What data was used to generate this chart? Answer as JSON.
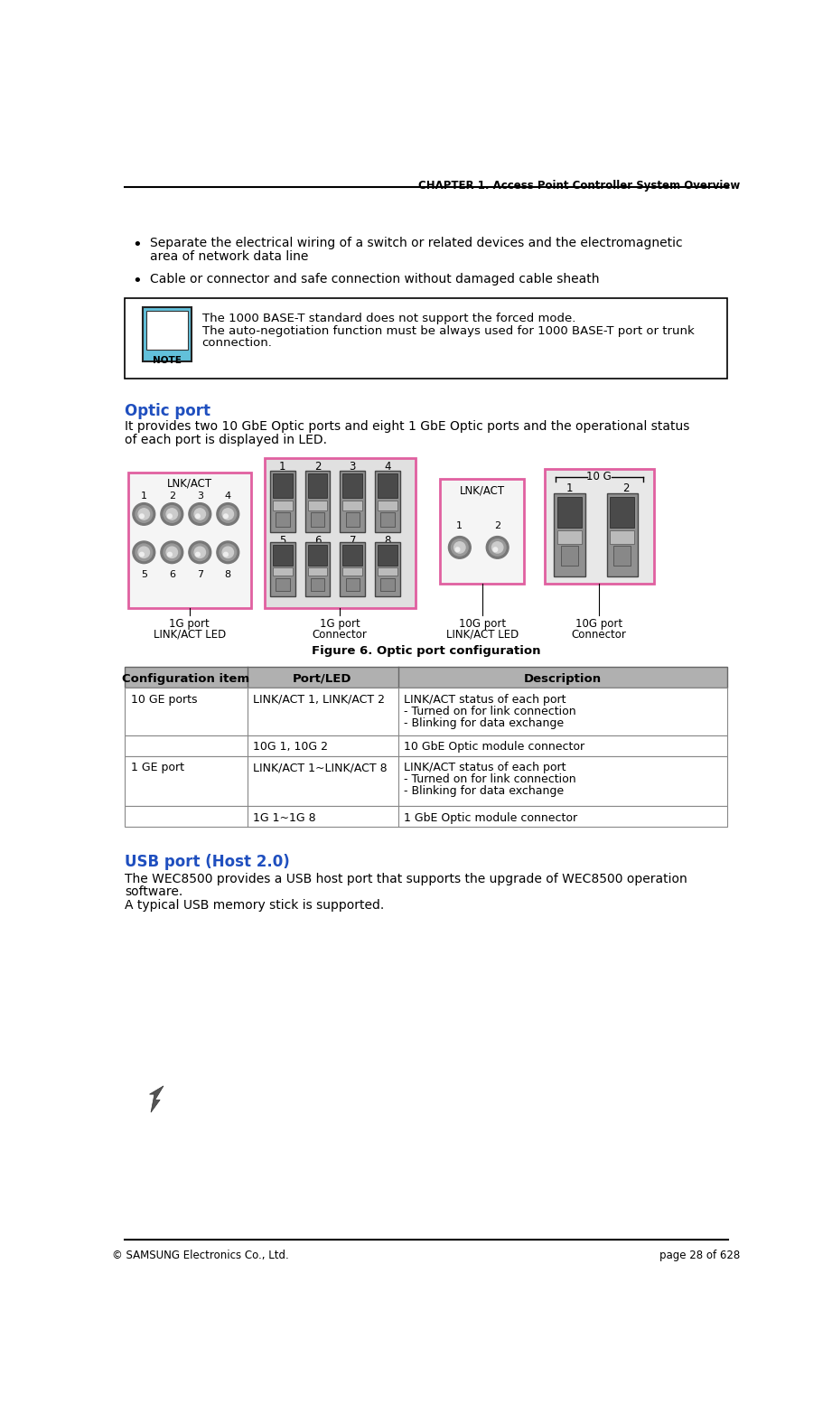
{
  "header_text": "CHAPTER 1. Access Point Controller System Overview",
  "footer_left": "© SAMSUNG Electronics Co., Ltd.",
  "footer_right": "page 28 of 628",
  "bullet1_line1": "Separate the electrical wiring of a switch or related devices and the electromagnetic",
  "bullet1_line2": "area of network data line",
  "bullet2": "Cable or connector and safe connection without damaged cable sheath",
  "note_line1": "The 1000 BASE-T standard does not support the forced mode.",
  "note_line2": "The auto-negotiation function must be always used for 1000 BASE-T port or trunk",
  "note_line3": "connection.",
  "optic_port_title": "Optic port",
  "optic_desc_line1": "It provides two 10 GbE Optic ports and eight 1 GbE Optic ports and the operational status",
  "optic_desc_line2": "of each port is displayed in LED.",
  "figure_caption": "Figure 6. Optic port configuration",
  "label_1g_linkact": "1G port\nLINK/ACT LED",
  "label_1g_connector": "1G port\nConnector",
  "label_10g_linkact": "10G port\nLINK/ACT LED",
  "label_10g_connector": "10G port\nConnector",
  "table_header": [
    "Configuration item",
    "Port/LED",
    "Description"
  ],
  "table_rows": [
    [
      "10 GE ports",
      "LINK/ACT 1, LINK/ACT 2",
      "LINK/ACT status of each port\n- Turned on for link connection\n- Blinking for data exchange"
    ],
    [
      "",
      "10G 1, 10G 2",
      "10 GbE Optic module connector"
    ],
    [
      "1 GE port",
      "LINK/ACT 1~LINK/ACT 8",
      "LINK/ACT status of each port\n- Turned on for link connection\n- Blinking for data exchange"
    ],
    [
      "",
      "1G 1~1G 8",
      "1 GbE Optic module connector"
    ]
  ],
  "usb_title": "USB port (Host 2.0)",
  "usb_line1": "The WEC8500 provides a USB host port that supports the upgrade of WEC8500 operation",
  "usb_line2": "software.",
  "usb_line3": "A typical USB memory stick is supported.",
  "header_color": "#000000",
  "optic_title_color": "#1F4FBF",
  "usb_title_color": "#1F4FBF",
  "table_header_bg": "#B8B8B8",
  "table_border_color": "#808080",
  "panel_border_color": "#E060A0",
  "background": "#ffffff",
  "note_icon_bg": "#5BBFDF",
  "note_icon_border": "#333333"
}
